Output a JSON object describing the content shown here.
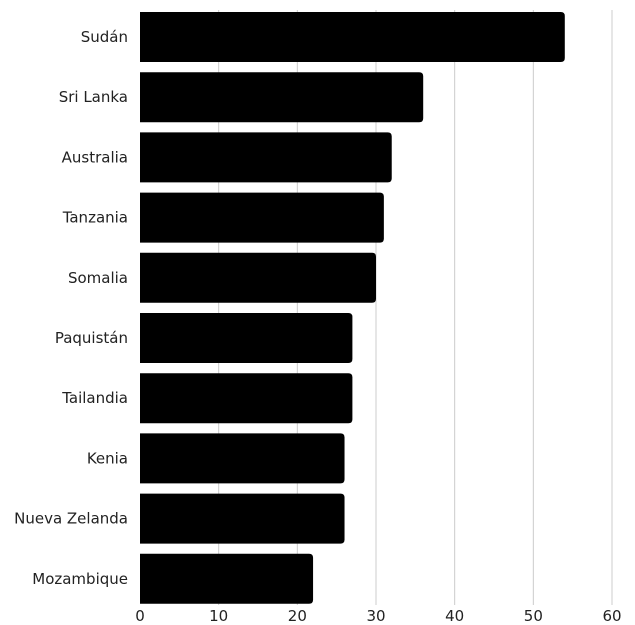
{
  "chart_data": {
    "type": "bar",
    "orientation": "horizontal",
    "title": "",
    "xlabel": "",
    "ylabel": "",
    "categories": [
      "Sudán",
      "Sri Lanka",
      "Australia",
      "Tanzania",
      "Somalia",
      "Paquistán",
      "Tailandia",
      "Kenia",
      "Nueva Zelanda",
      "Mozambique"
    ],
    "values": [
      54,
      36,
      32,
      31,
      30,
      27,
      27,
      26,
      26,
      22
    ],
    "xlim": [
      0,
      60
    ],
    "xticks": [
      0,
      10,
      20,
      30,
      40,
      50,
      60
    ],
    "grid": "vertical",
    "bar_color": "#000000",
    "grid_color": "#cccccc"
  }
}
